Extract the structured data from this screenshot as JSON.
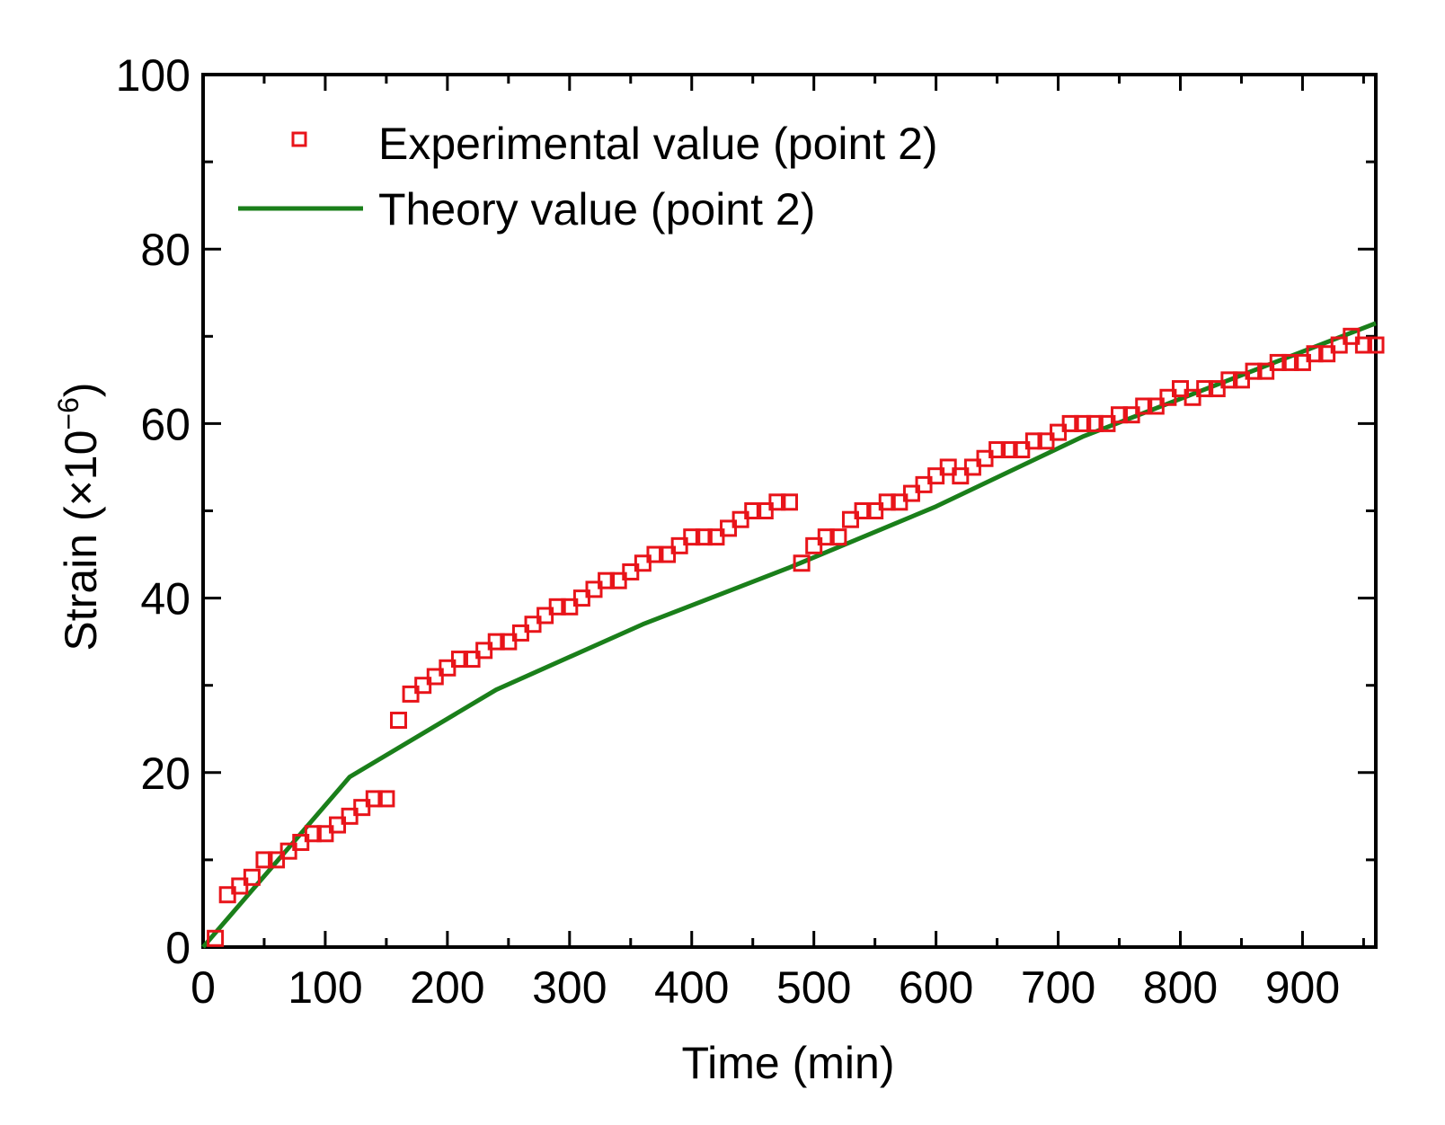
{
  "chart_data": {
    "type": "scatter",
    "title": "",
    "xlabel": "Time (min)",
    "ylabel_prefix": "Strain (×10",
    "ylabel_exp": "−6",
    "ylabel_suffix": ")",
    "xlim": [
      0,
      960
    ],
    "ylim": [
      0,
      100
    ],
    "xticks": [
      0,
      100,
      200,
      300,
      400,
      500,
      600,
      700,
      800,
      900
    ],
    "yticks": [
      0,
      20,
      40,
      60,
      80,
      100
    ],
    "xtick_labels": [
      "0",
      "100",
      "200",
      "300",
      "400",
      "500",
      "600",
      "700",
      "800",
      "900"
    ],
    "ytick_labels": [
      "0",
      "20",
      "40",
      "60",
      "80",
      "100"
    ],
    "grid": false,
    "legend_position": "top-left",
    "series": [
      {
        "name": "Experimental value (point 2)",
        "kind": "scatter",
        "marker": "open-square",
        "color": "#e8141a",
        "x": [
          10,
          20,
          30,
          40,
          50,
          60,
          70,
          80,
          90,
          100,
          110,
          120,
          130,
          140,
          150,
          160,
          170,
          180,
          190,
          200,
          210,
          220,
          230,
          240,
          250,
          260,
          270,
          280,
          290,
          300,
          310,
          320,
          330,
          340,
          350,
          360,
          370,
          380,
          390,
          400,
          410,
          420,
          430,
          440,
          450,
          460,
          470,
          480,
          490,
          500,
          510,
          520,
          530,
          540,
          550,
          560,
          570,
          580,
          590,
          600,
          610,
          620,
          630,
          640,
          650,
          660,
          670,
          680,
          690,
          700,
          710,
          720,
          730,
          740,
          750,
          760,
          770,
          780,
          790,
          800,
          810,
          820,
          830,
          840,
          850,
          860,
          870,
          880,
          890,
          900,
          910,
          920,
          930,
          940,
          950,
          960
        ],
        "y": [
          1,
          6,
          7,
          8,
          10,
          10,
          11,
          12,
          13,
          13,
          14,
          15,
          16,
          17,
          17,
          26,
          29,
          30,
          31,
          32,
          33,
          33,
          34,
          35,
          35,
          36,
          37,
          38,
          39,
          39,
          40,
          41,
          42,
          42,
          43,
          44,
          45,
          45,
          46,
          47,
          47,
          47,
          48,
          49,
          50,
          50,
          51,
          51,
          44,
          46,
          47,
          47,
          49,
          50,
          50,
          51,
          51,
          52,
          53,
          54,
          55,
          54,
          55,
          56,
          57,
          57,
          57,
          58,
          58,
          59,
          60,
          60,
          60,
          60,
          61,
          61,
          62,
          62,
          63,
          64,
          63,
          64,
          64,
          65,
          65,
          66,
          66,
          67,
          67,
          67,
          68,
          68,
          69,
          70,
          69,
          69
        ]
      },
      {
        "name": "Theory value (point 2)",
        "kind": "line",
        "color": "#1a7f1a",
        "x": [
          0,
          120,
          240,
          360,
          480,
          600,
          720,
          840,
          960
        ],
        "y": [
          0,
          19.5,
          29.5,
          37,
          43.5,
          50.5,
          58.5,
          65,
          71.5
        ]
      }
    ]
  }
}
